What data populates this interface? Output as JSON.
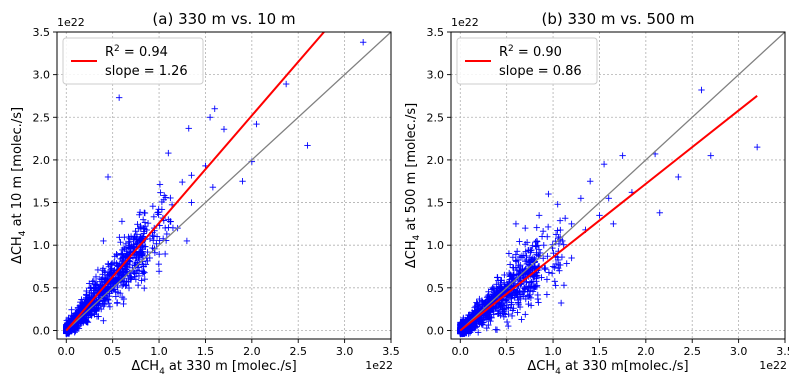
{
  "chart_data": [
    {
      "type": "scatter",
      "title": "(a) 330 m vs. 10 m",
      "xlabel_main": "ΔCH",
      "xlabel_sub": "4",
      "xlabel_rest": " at 330 m [molec./s]",
      "ylabel_main": "ΔCH",
      "ylabel_sub": "4",
      "ylabel_rest": " at 10 m [molec./s]",
      "x_multiplier": "1e22",
      "y_multiplier": "1e22",
      "xlim": [
        -0.1,
        3.5
      ],
      "ylim": [
        -0.1,
        3.5
      ],
      "xticks": [
        "0.0",
        "0.5",
        "1.0",
        "1.5",
        "2.0",
        "2.5",
        "3.0",
        "3.5"
      ],
      "yticks": [
        "0.0",
        "0.5",
        "1.0",
        "1.5",
        "2.0",
        "2.5",
        "3.0",
        "3.5"
      ],
      "grid": true,
      "legend_position": "top-left",
      "r2_label": "R",
      "r2_sup": "2",
      "r2_value": " = 0.94",
      "slope_label": "slope = 1.26",
      "regression_slope": 1.26,
      "regression_intercept": 0.0,
      "marker_color": "#0000ff",
      "fit_color": "#ff0000",
      "identity_color": "#808080",
      "seed": 11,
      "points": [
        [
          0.57,
          2.73
        ],
        [
          3.2,
          3.38
        ],
        [
          1.6,
          2.6
        ],
        [
          1.55,
          2.5
        ],
        [
          2.37,
          2.89
        ],
        [
          2.6,
          2.17
        ],
        [
          2.05,
          2.42
        ],
        [
          1.32,
          2.37
        ],
        [
          1.7,
          2.36
        ],
        [
          1.1,
          2.08
        ],
        [
          0.45,
          1.8
        ],
        [
          2.0,
          1.98
        ],
        [
          1.9,
          1.75
        ],
        [
          1.5,
          1.93
        ],
        [
          1.58,
          1.68
        ],
        [
          1.35,
          1.82
        ],
        [
          1.25,
          1.74
        ],
        [
          0.75,
          0.6
        ],
        [
          1.35,
          1.5
        ],
        [
          1.2,
          1.2
        ],
        [
          0.9,
          0.85
        ],
        [
          1.1,
          1.3
        ],
        [
          1.3,
          1.05
        ],
        [
          0.6,
          1.28
        ],
        [
          0.4,
          1.05
        ]
      ]
    },
    {
      "type": "scatter",
      "title": "(b) 330 m vs. 500 m",
      "xlabel_main": "ΔCH",
      "xlabel_sub": "4",
      "xlabel_rest": " at 330 m[molec./s]",
      "ylabel_main": "ΔCH",
      "ylabel_sub": "4",
      "ylabel_rest": " at 500 m [molec./s]",
      "x_multiplier": "1e22",
      "y_multiplier": "1e22",
      "xlim": [
        -0.1,
        3.5
      ],
      "ylim": [
        -0.1,
        3.5
      ],
      "xticks": [
        "0.0",
        "0.5",
        "1.0",
        "1.5",
        "2.0",
        "2.5",
        "3.0",
        "3.5"
      ],
      "yticks": [
        "0.0",
        "0.5",
        "1.0",
        "1.5",
        "2.0",
        "2.5",
        "3.0",
        "3.5"
      ],
      "grid": true,
      "legend_position": "top-left",
      "r2_label": "R",
      "r2_sup": "2",
      "r2_value": " = 0.90",
      "slope_label": "slope = 0.86",
      "regression_slope": 0.86,
      "regression_intercept": 0.0,
      "marker_color": "#0000ff",
      "fit_color": "#ff0000",
      "identity_color": "#808080",
      "seed": 29,
      "points": [
        [
          2.6,
          2.82
        ],
        [
          3.2,
          2.15
        ],
        [
          2.7,
          2.05
        ],
        [
          2.35,
          1.8
        ],
        [
          2.1,
          2.07
        ],
        [
          2.15,
          1.38
        ],
        [
          1.75,
          2.05
        ],
        [
          1.55,
          1.95
        ],
        [
          1.6,
          1.55
        ],
        [
          1.85,
          1.62
        ],
        [
          1.4,
          1.75
        ],
        [
          1.3,
          1.55
        ],
        [
          1.2,
          1.25
        ],
        [
          1.05,
          1.48
        ],
        [
          1.1,
          1.05
        ],
        [
          0.85,
          1.35
        ],
        [
          1.0,
          0.75
        ],
        [
          0.7,
          1.2
        ],
        [
          1.5,
          1.35
        ],
        [
          1.65,
          1.25
        ],
        [
          0.9,
          1.0
        ],
        [
          0.6,
          1.25
        ],
        [
          1.2,
          0.85
        ],
        [
          1.35,
          1.18
        ],
        [
          0.95,
          1.6
        ]
      ]
    }
  ]
}
